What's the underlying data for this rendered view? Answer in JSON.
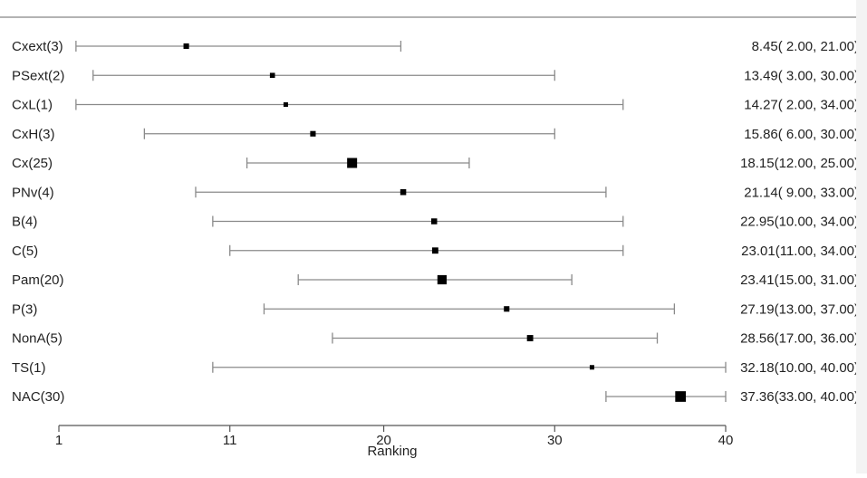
{
  "chart_data": {
    "type": "forest",
    "xlabel": "Ranking",
    "xlim": [
      1,
      40
    ],
    "xticks": [
      1,
      11,
      20,
      30,
      40
    ],
    "grid": false,
    "rows": [
      {
        "label": "Cxext(3)",
        "estimate": 8.45,
        "lower": 2.0,
        "upper": 21.0,
        "value_text": "8.45( 2.00, 21.00)",
        "n": 3
      },
      {
        "label": "PSext(2)",
        "estimate": 13.49,
        "lower": 3.0,
        "upper": 30.0,
        "value_text": "13.49( 3.00, 30.00)",
        "n": 2
      },
      {
        "label": "CxL(1)",
        "estimate": 14.27,
        "lower": 2.0,
        "upper": 34.0,
        "value_text": "14.27( 2.00, 34.00)",
        "n": 1
      },
      {
        "label": "CxH(3)",
        "estimate": 15.86,
        "lower": 6.0,
        "upper": 30.0,
        "value_text": "15.86( 6.00, 30.00)",
        "n": 3
      },
      {
        "label": "Cx(25)",
        "estimate": 18.15,
        "lower": 12.0,
        "upper": 25.0,
        "value_text": "18.15(12.00, 25.00)",
        "n": 25
      },
      {
        "label": "PNv(4)",
        "estimate": 21.14,
        "lower": 9.0,
        "upper": 33.0,
        "value_text": "21.14( 9.00, 33.00)",
        "n": 4
      },
      {
        "label": "B(4)",
        "estimate": 22.95,
        "lower": 10.0,
        "upper": 34.0,
        "value_text": "22.95(10.00, 34.00)",
        "n": 4
      },
      {
        "label": "C(5)",
        "estimate": 23.01,
        "lower": 11.0,
        "upper": 34.0,
        "value_text": "23.01(11.00, 34.00)",
        "n": 5
      },
      {
        "label": "Pam(20)",
        "estimate": 23.41,
        "lower": 15.0,
        "upper": 31.0,
        "value_text": "23.41(15.00, 31.00)",
        "n": 20
      },
      {
        "label": "P(3)",
        "estimate": 27.19,
        "lower": 13.0,
        "upper": 37.0,
        "value_text": "27.19(13.00, 37.00)",
        "n": 3
      },
      {
        "label": "NonA(5)",
        "estimate": 28.56,
        "lower": 17.0,
        "upper": 36.0,
        "value_text": "28.56(17.00, 36.00)",
        "n": 5
      },
      {
        "label": "TS(1)",
        "estimate": 32.18,
        "lower": 10.0,
        "upper": 40.0,
        "value_text": "32.18(10.00, 40.00)",
        "n": 1
      },
      {
        "label": "NAC(30)",
        "estimate": 37.36,
        "lower": 33.0,
        "upper": 40.0,
        "value_text": "37.36(33.00, 40.00)",
        "n": 30
      }
    ]
  }
}
